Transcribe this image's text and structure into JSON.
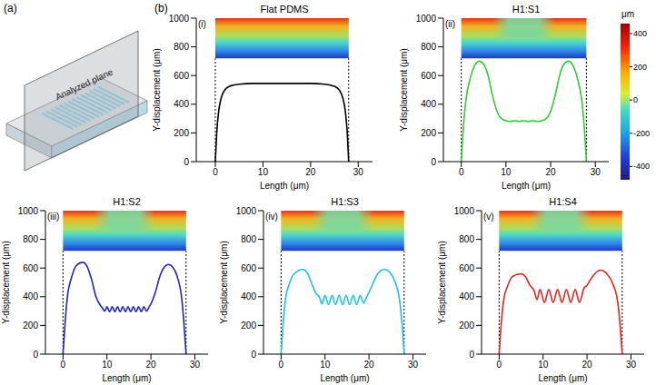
{
  "panels": {
    "a": {
      "label": "(a)",
      "text": "Analyzed plane"
    },
    "b": {
      "label": "(b)"
    }
  },
  "colorbar": {
    "label": "μm",
    "range": [
      -480,
      460
    ],
    "ticks": [
      400,
      200,
      0,
      -200,
      -400
    ]
  },
  "chart_data": [
    {
      "type": "line",
      "title": "Flat PDMS",
      "panel": "(i)",
      "x_label": "Length (μm)",
      "y_label": "Y-displacement (μm)",
      "color": "#000000",
      "xlim": [
        -4,
        33
      ],
      "xticks": [
        0,
        10,
        20,
        30
      ],
      "ylim": [
        0,
        1000
      ],
      "yticks": [
        0,
        200,
        400,
        600,
        800,
        1000
      ],
      "field_x": [
        0,
        28
      ],
      "field_y": [
        720,
        1000
      ],
      "x": [
        0,
        0.3,
        0.7,
        1.2,
        2,
        3,
        5,
        8,
        11,
        14,
        17,
        20,
        23,
        25,
        26,
        26.8,
        27.3,
        27.7,
        28
      ],
      "values": [
        0,
        200,
        350,
        440,
        500,
        525,
        540,
        545,
        545,
        545,
        545,
        545,
        540,
        525,
        500,
        440,
        350,
        200,
        0
      ]
    },
    {
      "type": "line",
      "title": "H1:S1",
      "panel": "(ii)",
      "x_label": "Length (μm)",
      "y_label": "Y-displacement (μm)",
      "color": "#33cc33",
      "xlim": [
        -4,
        33
      ],
      "xticks": [
        0,
        10,
        20,
        30
      ],
      "ylim": [
        0,
        1000
      ],
      "yticks": [
        0,
        200,
        400,
        600,
        800,
        1000
      ],
      "field_x": [
        0,
        28
      ],
      "field_y": [
        720,
        1000
      ],
      "x": [
        0,
        0.5,
        1,
        2,
        3,
        4,
        5,
        6,
        7,
        8,
        9,
        10,
        11,
        12,
        13,
        14,
        15,
        16,
        17,
        18,
        19,
        20,
        21,
        22,
        23,
        24,
        25,
        26,
        27,
        27.5,
        28
      ],
      "values": [
        0,
        250,
        420,
        580,
        670,
        700,
        680,
        600,
        460,
        350,
        300,
        285,
        280,
        285,
        280,
        285,
        280,
        285,
        280,
        285,
        300,
        350,
        460,
        600,
        680,
        700,
        670,
        580,
        420,
        250,
        0
      ]
    },
    {
      "type": "line",
      "title": "H1:S2",
      "panel": "(iii)",
      "x_label": "Length (μm)",
      "y_label": "Y-displacement (μm)",
      "color": "#2323c8",
      "xlim": [
        -4,
        33
      ],
      "xticks": [
        0,
        10,
        20,
        30
      ],
      "ylim": [
        0,
        1000
      ],
      "yticks": [
        0,
        200,
        400,
        600,
        800,
        1000
      ],
      "field_x": [
        0,
        28
      ],
      "field_y": [
        720,
        1000
      ],
      "x": [
        0,
        0.5,
        1,
        2,
        3,
        4.5,
        5.5,
        6.5,
        7.5,
        8.5,
        9,
        9.5,
        10,
        10.6,
        11.2,
        11.8,
        12.4,
        13,
        13.6,
        14.2,
        14.8,
        15.4,
        16,
        16.6,
        17.2,
        17.8,
        18.4,
        19,
        19.6,
        20,
        21,
        22,
        23,
        24,
        25,
        26,
        27,
        27.5,
        28
      ],
      "values": [
        0,
        230,
        400,
        540,
        615,
        640,
        610,
        520,
        400,
        340,
        320,
        300,
        330,
        295,
        330,
        295,
        330,
        295,
        330,
        295,
        330,
        295,
        330,
        295,
        330,
        295,
        330,
        300,
        330,
        350,
        430,
        540,
        605,
        625,
        605,
        540,
        390,
        220,
        0
      ]
    },
    {
      "type": "line",
      "title": "H1:S3",
      "panel": "(iv)",
      "x_label": "Length (μm)",
      "y_label": "Y-displacement (μm)",
      "color": "#19c4e6",
      "xlim": [
        -4,
        33
      ],
      "xticks": [
        0,
        10,
        20,
        30
      ],
      "ylim": [
        0,
        1000
      ],
      "yticks": [
        0,
        200,
        400,
        600,
        800,
        1000
      ],
      "field_x": [
        0,
        28
      ],
      "field_y": [
        720,
        1000
      ],
      "x": [
        0,
        0.5,
        1,
        2,
        3,
        5,
        6,
        7,
        8,
        8.7,
        9.3,
        10,
        10.8,
        11.6,
        12.4,
        13.2,
        14,
        14.8,
        15.6,
        16.4,
        17.2,
        18,
        18.8,
        19.5,
        20,
        21,
        22,
        23.5,
        25,
        26,
        27,
        27.5,
        28
      ],
      "values": [
        0,
        220,
        380,
        500,
        560,
        590,
        565,
        490,
        420,
        400,
        350,
        410,
        345,
        410,
        345,
        410,
        345,
        410,
        345,
        410,
        345,
        410,
        355,
        400,
        430,
        500,
        560,
        590,
        560,
        500,
        370,
        220,
        0
      ]
    },
    {
      "type": "line",
      "title": "H1:S4",
      "panel": "(v)",
      "x_label": "Length (μm)",
      "y_label": "Y-displacement (μm)",
      "color": "#e8231f",
      "xlim": [
        -4,
        33
      ],
      "xticks": [
        0,
        10,
        20,
        30
      ],
      "ylim": [
        0,
        1000
      ],
      "yticks": [
        0,
        200,
        400,
        600,
        800,
        1000
      ],
      "field_x": [
        0,
        28
      ],
      "field_y": [
        720,
        1000
      ],
      "x": [
        0,
        0.5,
        1,
        2,
        3,
        5,
        6,
        7,
        8,
        8.6,
        9.3,
        10.3,
        11.3,
        12.3,
        13.3,
        14.3,
        15.3,
        16.3,
        17.3,
        18.3,
        19.3,
        20,
        21,
        23,
        24.5,
        26,
        27,
        27.5,
        28
      ],
      "values": [
        0,
        220,
        370,
        480,
        540,
        560,
        540,
        480,
        440,
        380,
        450,
        360,
        450,
        360,
        450,
        360,
        450,
        360,
        450,
        360,
        460,
        480,
        530,
        585,
        560,
        480,
        360,
        210,
        0
      ]
    }
  ]
}
